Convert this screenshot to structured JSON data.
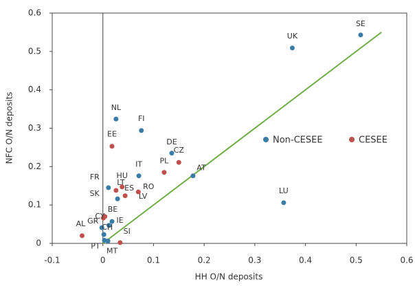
{
  "chart_data": {
    "type": "scatter",
    "x_label": "HH O/N deposits",
    "y_label": "NFC O/N deposits",
    "xlim": [
      -0.1,
      0.6
    ],
    "xticks": [
      -0.1,
      0,
      0.1,
      0.2,
      0.3,
      0.4,
      0.5,
      0.6
    ],
    "ylim": [
      0,
      0.6
    ],
    "yticks": [
      0,
      0.1,
      0.2,
      0.3,
      0.4,
      0.5,
      0.6
    ],
    "legend": "right",
    "series": [
      {
        "name": "Non-CESEE",
        "color": "#3a7ca8",
        "labels": [
          "SE",
          "UK",
          "NL",
          "FI",
          "DE",
          "IT",
          "AT",
          "FR",
          "LV",
          "LU",
          "BE",
          "IE",
          "GR",
          "CH",
          "PT",
          "MT"
        ],
        "x": [
          0.509,
          0.374,
          0.026,
          0.076,
          0.136,
          0.071,
          0.178,
          0.011,
          0.029,
          0.357,
          0.018,
          0.012,
          -0.002,
          0.002,
          0.003,
          0.01
        ],
        "values": [
          0.543,
          0.509,
          0.324,
          0.294,
          0.235,
          0.176,
          0.176,
          0.145,
          0.116,
          0.106,
          0.057,
          0.047,
          0.041,
          0.023,
          0.008,
          0.006
        ]
      },
      {
        "name": "CESEE",
        "color": "#c0504d",
        "labels": [
          "EE",
          "CZ",
          "PL",
          "HU",
          "LT",
          "ES",
          "RO",
          "SK",
          "CY",
          "AL",
          "SI"
        ],
        "x": [
          0.018,
          0.15,
          0.121,
          0.038,
          0.026,
          0.044,
          0.07,
          0.004,
          0.001,
          -0.041,
          0.034
        ],
        "values": [
          0.253,
          0.211,
          0.185,
          0.147,
          0.138,
          0.124,
          0.134,
          0.07,
          0.066,
          0.02,
          0.002
        ]
      }
    ],
    "reference_line": {
      "color": "#70ad47",
      "x": [
        0,
        0.55
      ],
      "values": [
        0,
        0.55
      ]
    }
  }
}
